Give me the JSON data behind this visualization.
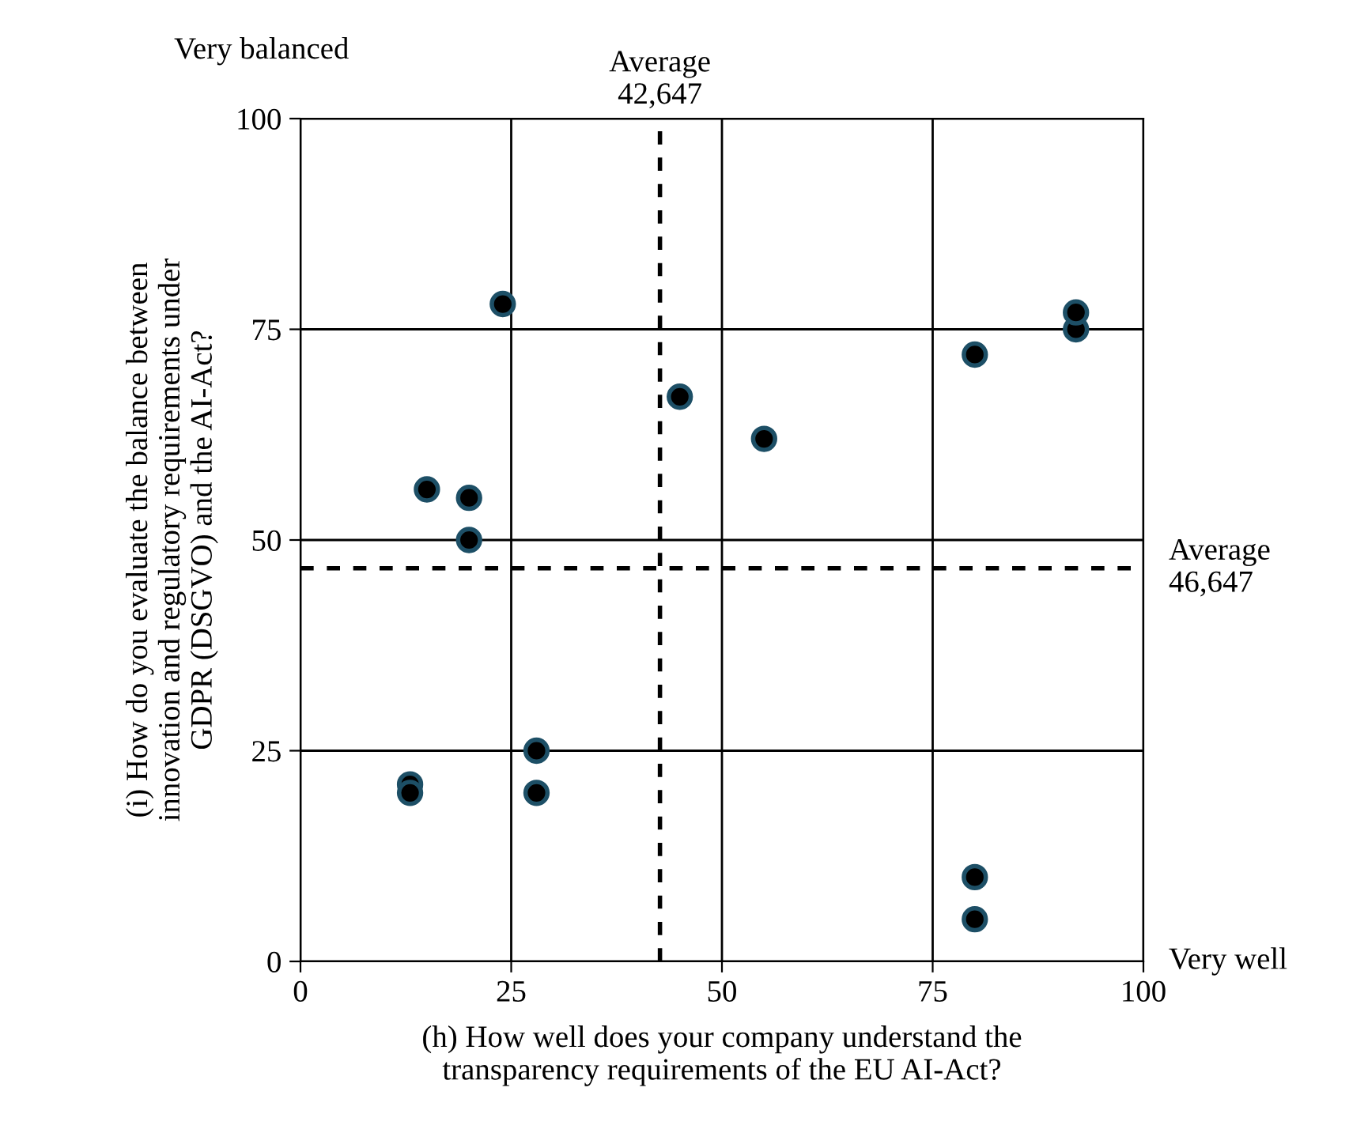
{
  "chart_data": {
    "type": "scatter",
    "xlabel": "(h) How well does your company understand the\ntransparency requirements of the EU AI-Act?",
    "ylabel": "(i) How do you evaluate the balance between\ninnovation and regulatory requirements under\nGDPR (DSGVO) and the AI-Act?",
    "series": [
      {
        "color": "#000000",
        "x": [
          24,
          15,
          20,
          20,
          45,
          55,
          80,
          92,
          92,
          13,
          13,
          28,
          28,
          80,
          80
        ],
        "values": [
          78,
          56,
          55,
          50,
          67,
          62,
          72,
          75,
          77,
          21,
          20,
          25,
          20,
          10,
          5
        ]
      }
    ],
    "xlim": [
      0,
      100
    ],
    "ylim": [
      0,
      100
    ],
    "xticks": [
      0,
      25,
      50,
      75,
      100
    ],
    "yticks": [
      0,
      25,
      50,
      75,
      100
    ],
    "grid": true,
    "marker": "circle",
    "ref_lines": [
      {
        "axis": "x",
        "value": 42.647,
        "label": "Average\n42,647",
        "line_style": "dotted"
      },
      {
        "axis": "y",
        "value": 46.647,
        "label": "Average\n46,647",
        "line_style": "dotted"
      }
    ],
    "annotations": [
      "Very balanced",
      "Very well"
    ]
  }
}
